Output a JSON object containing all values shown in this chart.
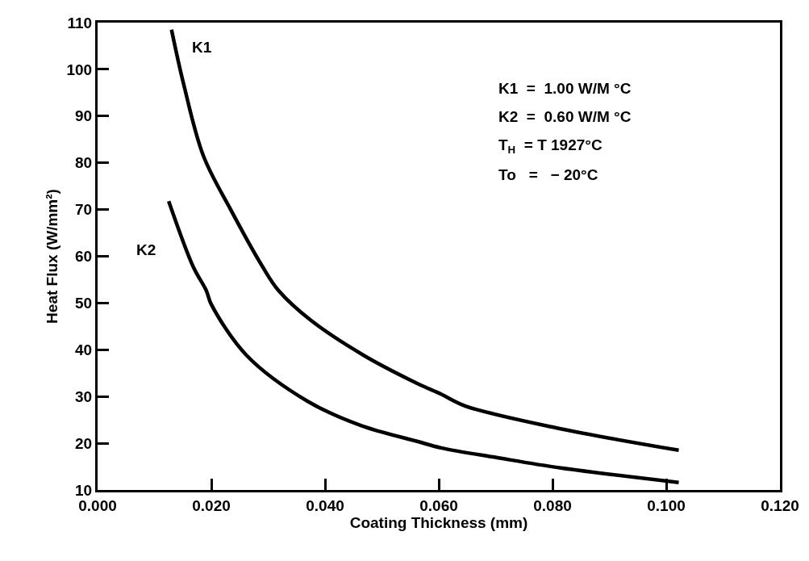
{
  "chart_data": {
    "type": "line",
    "xlabel": "Coating Thickness (mm)",
    "ylabel": "Heat Flux (W/mm²)",
    "xlim": [
      0,
      0.12
    ],
    "ylim": [
      10,
      110
    ],
    "xticks": [
      {
        "value": 0,
        "label": "0.000"
      },
      {
        "value": 0.02,
        "label": "0.020"
      },
      {
        "value": 0.04,
        "label": "0.040"
      },
      {
        "value": 0.06,
        "label": "0.060"
      },
      {
        "value": 0.08,
        "label": "0.080"
      },
      {
        "value": 0.1,
        "label": "0.100"
      },
      {
        "value": 0.12,
        "label": "0.120"
      }
    ],
    "yticks": [
      10,
      20,
      30,
      40,
      50,
      60,
      70,
      80,
      90,
      100,
      110
    ],
    "legend": false,
    "marker": "none",
    "line_style": "solid",
    "series": [
      {
        "name": "K1",
        "color": "#000000",
        "x": [
          0.013,
          0.0151,
          0.0186,
          0.0234,
          0.029,
          0.0318,
          0.0375,
          0.0468,
          0.0562,
          0.0604,
          0.0646,
          0.0806,
          0.1022
        ],
        "values": [
          108.5,
          97,
          81.5,
          70,
          57.8,
          52.7,
          46.3,
          38.8,
          32.8,
          30.5,
          28,
          23.3,
          18.5
        ]
      },
      {
        "name": "K2",
        "color": "#000000",
        "x": [
          0.0125,
          0.0168,
          0.0191,
          0.02,
          0.0262,
          0.0369,
          0.0463,
          0.0562,
          0.0604,
          0.0703,
          0.0815,
          0.1022
        ],
        "values": [
          71.8,
          57.8,
          52.7,
          49.7,
          38.8,
          29,
          23.8,
          20.4,
          19,
          16.9,
          14.7,
          11.6
        ]
      }
    ],
    "annotations": [
      "K1  =  1.00 W/M °C",
      "K2  =  0.60 W/M °C",
      "T$_{H}$  = T 1927°C",
      "To   =   − 20°C"
    ]
  }
}
